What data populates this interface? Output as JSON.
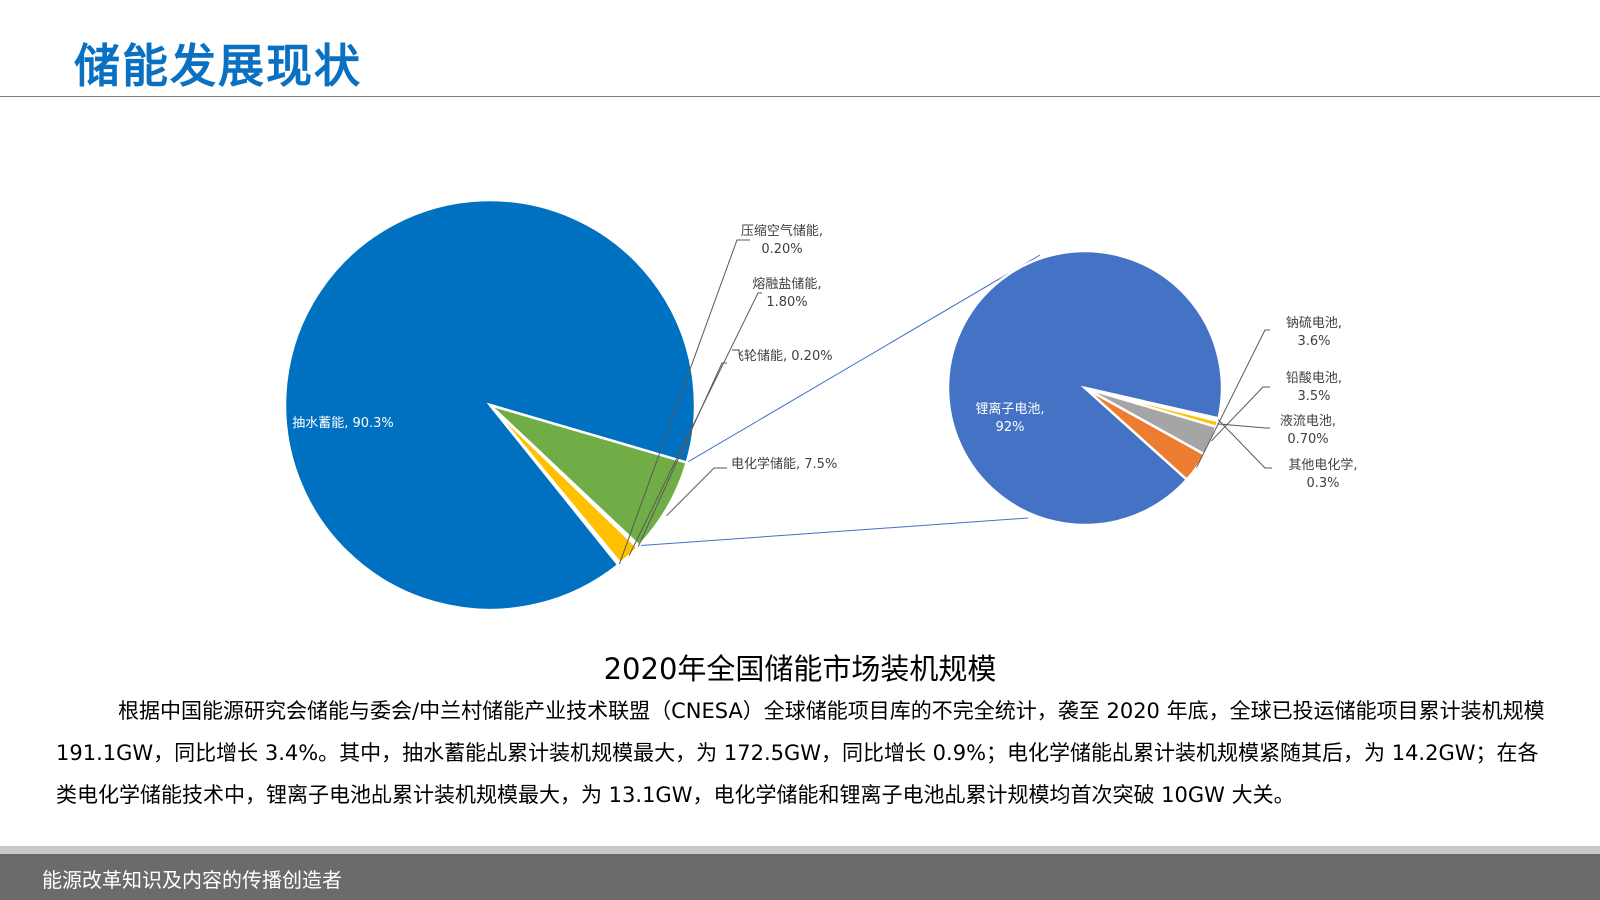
{
  "page": {
    "title": "储能发展现状",
    "chart_caption": "2020年全国储能市场装机规模",
    "paragraph": "根据中国能源研究会储能与委会/中兰村储能产业技术联盟（CNESA）全球储能项目库的不完全统计，袭至 2020 年底，全球已投运储能项目累计装机规模 191.1GW，同比增长 3.4%。其中，抽水蓄能乩累计装机规模最大，为 172.5GW，同比增长 0.9%；电化学储能乩累计装机规模紧随其后，为 14.2GW；在各类电化学储能技术中，锂离子电池乩累计装机规模最大，为 13.1GW，电化学储能和锂离子电池乩累计规模均首次突破 10GW 大关。",
    "footer": "能源改革知识及内容的传播创造者"
  },
  "chart_data": [
    {
      "type": "pie",
      "slices": [
        {
          "name": "抽水蓄能",
          "value": 90.3,
          "label": "90.3%",
          "color": "#0070c0"
        },
        {
          "name": "压缩空气储能",
          "value": 0.2,
          "label": "0.20%",
          "color": "#5b9bd5"
        },
        {
          "name": "熔融盐储能",
          "value": 1.8,
          "label": "1.80%",
          "color": "#ffc000"
        },
        {
          "name": "飞轮储能",
          "value": 0.2,
          "label": "0.20%",
          "color": "#a5a5a5"
        },
        {
          "name": "电化学储能",
          "value": 7.5,
          "label": "7.5%",
          "color": "#70ad47"
        }
      ]
    },
    {
      "type": "pie",
      "slices": [
        {
          "name": "锂离子电池",
          "value": 92,
          "label": "92%",
          "color": "#4472c4"
        },
        {
          "name": "钠硫电池",
          "value": 3.6,
          "label": "3.6%",
          "color": "#ed7d31"
        },
        {
          "name": "铅酸电池",
          "value": 3.5,
          "label": "3.5%",
          "color": "#a5a5a5"
        },
        {
          "name": "液流电池",
          "value": 0.7,
          "label": "0.70%",
          "color": "#ffc000"
        },
        {
          "name": "其他电化学",
          "value": 0.3,
          "label": "0.3%",
          "color": "#5b9bd5"
        }
      ]
    }
  ]
}
